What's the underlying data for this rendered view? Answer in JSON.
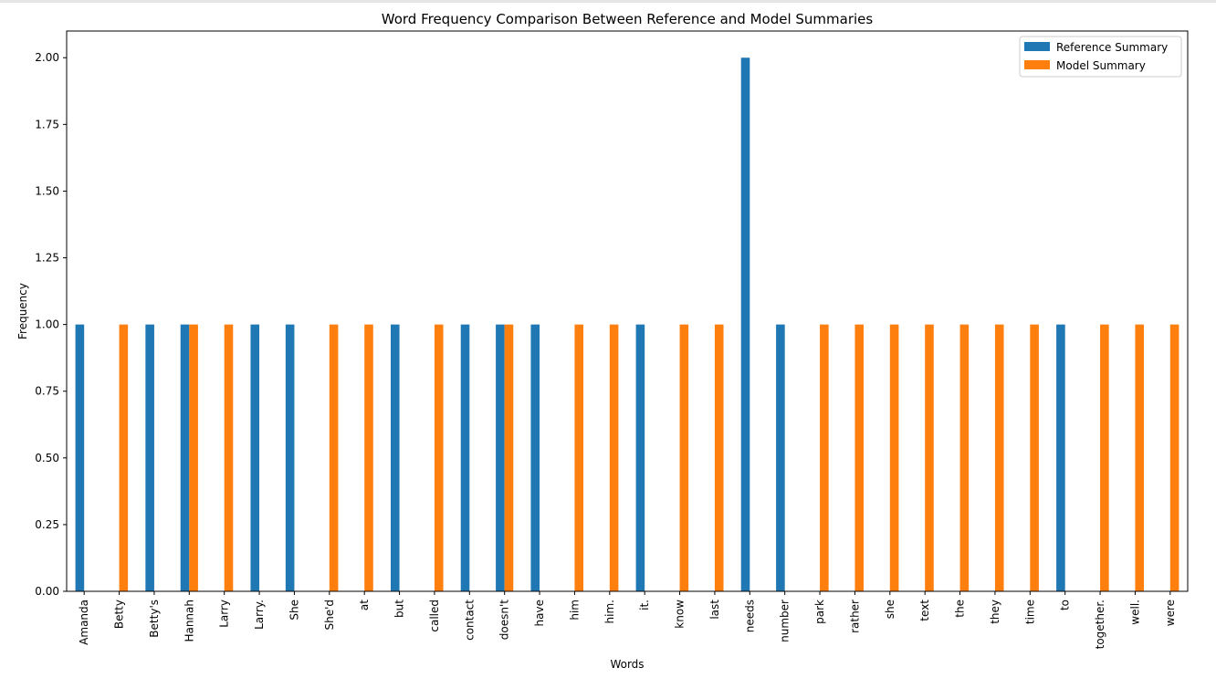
{
  "chart_data": {
    "type": "bar",
    "title": "Word Frequency Comparison Between Reference and Model Summaries",
    "xlabel": "Words",
    "ylabel": "Frequency",
    "ylim": [
      0,
      2.1
    ],
    "yticks": [
      "0.00",
      "0.25",
      "0.50",
      "0.75",
      "1.00",
      "1.25",
      "1.50",
      "1.75",
      "2.00"
    ],
    "legend_position": "top-right",
    "grid": false,
    "categories": [
      "Amanda",
      "Betty",
      "Betty's",
      "Hannah",
      "Larry",
      "Larry.",
      "She",
      "She'd",
      "at",
      "but",
      "called",
      "contact",
      "doesn't",
      "have",
      "him",
      "him.",
      "it.",
      "know",
      "last",
      "needs",
      "number",
      "park",
      "rather",
      "she",
      "text",
      "the",
      "they",
      "time",
      "to",
      "together.",
      "well.",
      "were"
    ],
    "series": [
      {
        "name": "Reference Summary",
        "color": "#1f77b4",
        "values": [
          1,
          0,
          1,
          1,
          0,
          1,
          1,
          0,
          0,
          1,
          0,
          1,
          1,
          1,
          0,
          0,
          1,
          0,
          0,
          2,
          1,
          0,
          0,
          0,
          0,
          0,
          0,
          0,
          1,
          0,
          0,
          0
        ]
      },
      {
        "name": "Model Summary",
        "color": "#ff7f0e",
        "values": [
          0,
          1,
          0,
          1,
          1,
          0,
          0,
          1,
          1,
          0,
          1,
          0,
          1,
          0,
          1,
          1,
          0,
          1,
          1,
          0,
          0,
          1,
          1,
          1,
          1,
          1,
          1,
          1,
          0,
          1,
          1,
          1
        ]
      }
    ]
  }
}
